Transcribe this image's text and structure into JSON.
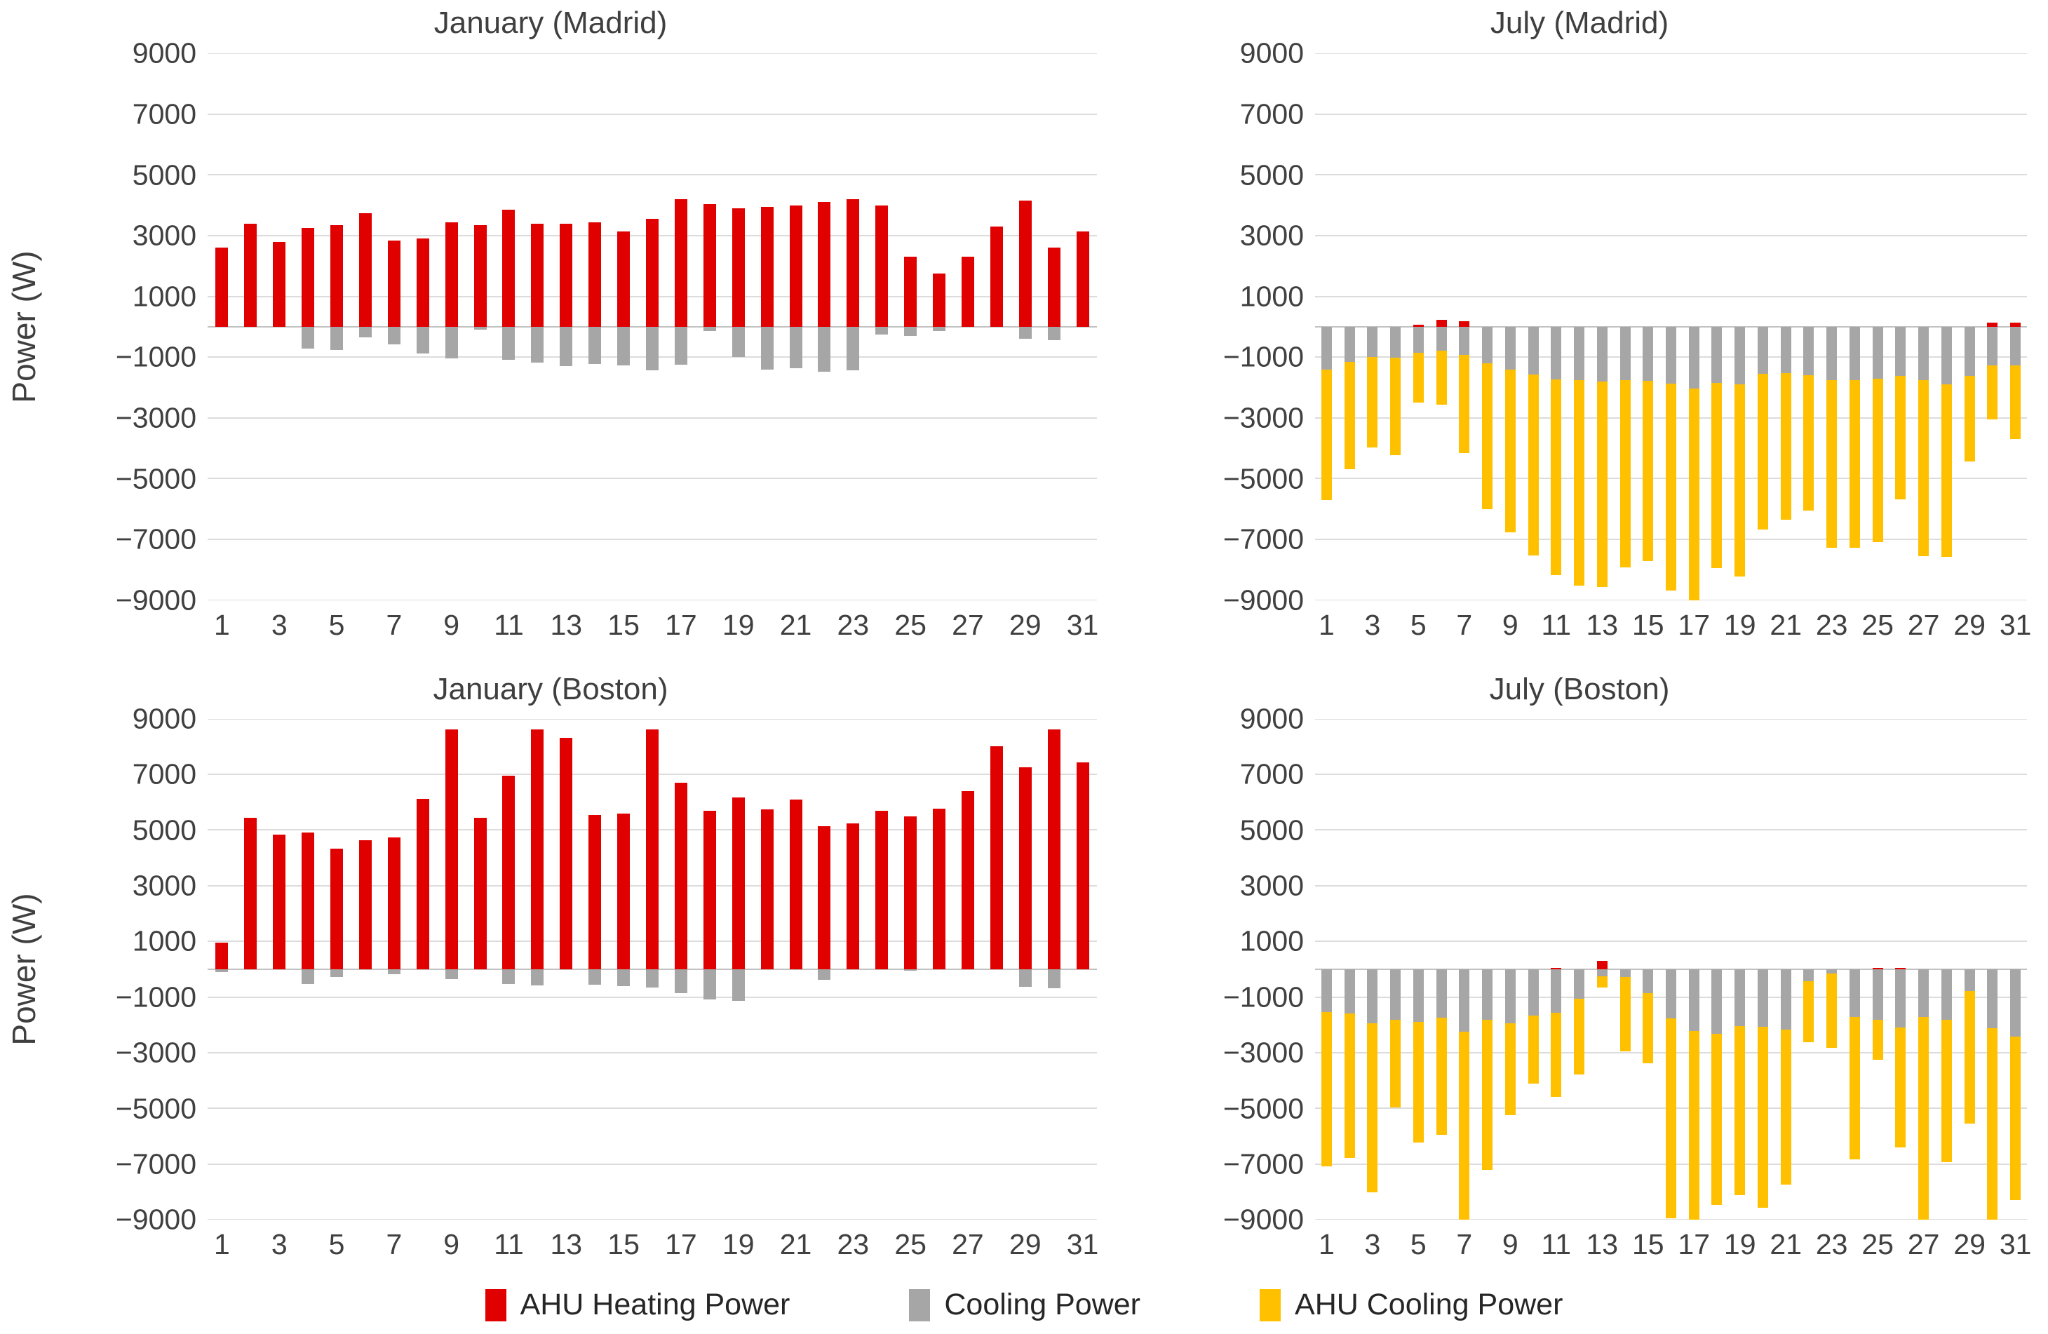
{
  "page": {
    "background": "#ffffff"
  },
  "colors": {
    "heating_red": "#e00000",
    "cooling_gray": "#a6a6a6",
    "ahu_cooling_yellow": "#ffc000",
    "text_dark": "#3f3f3f",
    "gridline": "#dcdcdc"
  },
  "y_axis": {
    "label": "Power (W)",
    "tick_labels": [
      "9000",
      "7000",
      "5000",
      "3000",
      "1000",
      "−1000",
      "−3000",
      "−5000",
      "−7000",
      "−9000"
    ],
    "tick_values": [
      9000,
      7000,
      5000,
      3000,
      1000,
      -1000,
      -3000,
      -5000,
      -7000,
      -9000
    ],
    "min": -9000,
    "max": 9000
  },
  "x_axis": {
    "tick_labels": [
      "1",
      "3",
      "5",
      "7",
      "9",
      "11",
      "13",
      "15",
      "17",
      "19",
      "21",
      "23",
      "25",
      "27",
      "29",
      "31"
    ],
    "tick_days": [
      1,
      3,
      5,
      7,
      9,
      11,
      13,
      15,
      17,
      19,
      21,
      23,
      25,
      27,
      29,
      31
    ]
  },
  "legend": {
    "items": [
      {
        "label": "AHU Heating Power",
        "color": "#e00000"
      },
      {
        "label": "Cooling Power",
        "color": "#a6a6a6"
      },
      {
        "label": "AHU Cooling Power",
        "color": "#ffc000"
      }
    ]
  },
  "chart_data": [
    {
      "type": "bar",
      "stacked": true,
      "title": "January (Madrid)",
      "xlabel": "",
      "ylabel": "Power (W)",
      "ylim": [
        -9000,
        9000
      ],
      "grid": true,
      "categories": [
        1,
        2,
        3,
        4,
        5,
        6,
        7,
        8,
        9,
        10,
        11,
        12,
        13,
        14,
        15,
        16,
        17,
        18,
        19,
        20,
        21,
        22,
        23,
        24,
        25,
        26,
        27,
        28,
        29,
        30,
        31
      ],
      "series": [
        {
          "name": "AHU Heating Power",
          "values": [
            2600,
            3400,
            2800,
            3250,
            3350,
            3750,
            2850,
            2900,
            3450,
            3350,
            3850,
            3400,
            3400,
            3450,
            3150,
            3550,
            4200,
            4050,
            3900,
            3950,
            4000,
            4100,
            4200,
            4000,
            2300,
            1750,
            2300,
            3300,
            4150,
            2600,
            3150
          ]
        },
        {
          "name": "Cooling Power",
          "values": [
            0,
            0,
            0,
            -720,
            -760,
            -350,
            -580,
            -880,
            -1040,
            -100,
            -1080,
            -1175,
            -1300,
            -1225,
            -1260,
            -1440,
            -1250,
            -150,
            -985,
            -1400,
            -1365,
            -1485,
            -1425,
            -260,
            -290,
            -130,
            0,
            0,
            -400,
            -450,
            0
          ]
        },
        {
          "name": "AHU Cooling Power",
          "values": [
            0,
            0,
            0,
            0,
            0,
            0,
            0,
            0,
            0,
            0,
            0,
            0,
            0,
            0,
            0,
            0,
            0,
            0,
            0,
            0,
            0,
            0,
            0,
            0,
            0,
            0,
            0,
            0,
            0,
            0,
            0
          ]
        }
      ]
    },
    {
      "type": "bar",
      "stacked": true,
      "title": "July (Madrid)",
      "xlabel": "",
      "ylabel": "",
      "ylim": [
        -9000,
        9000
      ],
      "grid": true,
      "categories": [
        1,
        2,
        3,
        4,
        5,
        6,
        7,
        8,
        9,
        10,
        11,
        12,
        13,
        14,
        15,
        16,
        17,
        18,
        19,
        20,
        21,
        22,
        23,
        24,
        25,
        26,
        27,
        28,
        29,
        30,
        31
      ],
      "series": [
        {
          "name": "AHU Heating Power",
          "values": [
            0,
            0,
            0,
            0,
            60,
            240,
            190,
            0,
            0,
            0,
            0,
            0,
            0,
            0,
            0,
            0,
            0,
            0,
            0,
            0,
            0,
            0,
            0,
            0,
            0,
            0,
            0,
            0,
            0,
            150,
            150
          ]
        },
        {
          "name": "Cooling Power",
          "values": [
            -1400,
            -1150,
            -1000,
            -1025,
            -850,
            -780,
            -920,
            -1200,
            -1415,
            -1560,
            -1735,
            -1760,
            -1800,
            -1760,
            -1775,
            -1865,
            -2040,
            -1855,
            -1895,
            -1545,
            -1520,
            -1585,
            -1760,
            -1760,
            -1720,
            -1615,
            -1760,
            -1905,
            -1615,
            -1280,
            -1265
          ]
        },
        {
          "name": "AHU Cooling Power",
          "values": [
            -4300,
            -3550,
            -2980,
            -3200,
            -1650,
            -1780,
            -3240,
            -4800,
            -5350,
            -5960,
            -6430,
            -6760,
            -6760,
            -6160,
            -5950,
            -6820,
            -6960,
            -6080,
            -6330,
            -5140,
            -4840,
            -4460,
            -5520,
            -5520,
            -5360,
            -4070,
            -5800,
            -5660,
            -2830,
            -1760,
            -2420
          ]
        }
      ]
    },
    {
      "type": "bar",
      "stacked": true,
      "title": "January (Boston)",
      "xlabel": "",
      "ylabel": "Power (W)",
      "ylim": [
        -9000,
        9000
      ],
      "grid": true,
      "categories": [
        1,
        2,
        3,
        4,
        5,
        6,
        7,
        8,
        9,
        10,
        11,
        12,
        13,
        14,
        15,
        16,
        17,
        18,
        19,
        20,
        21,
        22,
        23,
        24,
        25,
        26,
        27,
        28,
        29,
        30,
        31
      ],
      "series": [
        {
          "name": "AHU Heating Power",
          "values": [
            950,
            5450,
            4840,
            4920,
            4340,
            4640,
            4740,
            6130,
            8620,
            5450,
            6950,
            8620,
            8310,
            5530,
            5600,
            8620,
            6700,
            5680,
            6160,
            5750,
            6100,
            5140,
            5240,
            5700,
            5480,
            5780,
            6410,
            8020,
            7250,
            8620,
            7420
          ]
        },
        {
          "name": "Cooling Power",
          "values": [
            -90,
            0,
            0,
            -520,
            -275,
            0,
            -170,
            0,
            -355,
            0,
            -520,
            -580,
            0,
            -545,
            -610,
            -665,
            -860,
            -1095,
            -1140,
            0,
            0,
            -390,
            0,
            0,
            -60,
            0,
            0,
            0,
            -630,
            -690,
            0
          ]
        },
        {
          "name": "AHU Cooling Power",
          "values": [
            0,
            0,
            0,
            0,
            0,
            0,
            0,
            0,
            0,
            0,
            0,
            0,
            0,
            0,
            0,
            0,
            0,
            0,
            0,
            0,
            0,
            0,
            0,
            0,
            0,
            0,
            0,
            0,
            0,
            0,
            0
          ]
        }
      ]
    },
    {
      "type": "bar",
      "stacked": true,
      "title": "July (Boston)",
      "xlabel": "",
      "ylabel": "",
      "ylim": [
        -9000,
        9000
      ],
      "grid": true,
      "categories": [
        1,
        2,
        3,
        4,
        5,
        6,
        7,
        8,
        9,
        10,
        11,
        12,
        13,
        14,
        15,
        16,
        17,
        18,
        19,
        20,
        21,
        22,
        23,
        24,
        25,
        26,
        27,
        28,
        29,
        30,
        31
      ],
      "series": [
        {
          "name": "AHU Heating Power",
          "values": [
            0,
            0,
            0,
            0,
            0,
            0,
            0,
            0,
            0,
            0,
            60,
            0,
            310,
            0,
            0,
            0,
            0,
            0,
            0,
            0,
            0,
            0,
            0,
            0,
            60,
            60,
            0,
            0,
            0,
            0,
            0
          ]
        },
        {
          "name": "Cooling Power",
          "values": [
            -1530,
            -1590,
            -1950,
            -1815,
            -1880,
            -1730,
            -2240,
            -1815,
            -1945,
            -1675,
            -1570,
            -1065,
            -240,
            -280,
            -855,
            -1760,
            -2220,
            -2330,
            -2050,
            -2070,
            -2155,
            -425,
            -140,
            -1720,
            -1805,
            -2100,
            -1705,
            -1810,
            -790,
            -2105,
            -2420
          ]
        },
        {
          "name": "AHU Cooling Power",
          "values": [
            -5560,
            -5180,
            -6050,
            -3160,
            -4330,
            -4220,
            -6750,
            -5400,
            -3300,
            -2420,
            -3010,
            -2715,
            -420,
            -2660,
            -2530,
            -7190,
            -6770,
            -6130,
            -6050,
            -6490,
            -5590,
            -2200,
            -2680,
            -5110,
            -1450,
            -4300,
            -7295,
            -5105,
            -4760,
            -6895,
            -5870
          ]
        }
      ]
    }
  ]
}
